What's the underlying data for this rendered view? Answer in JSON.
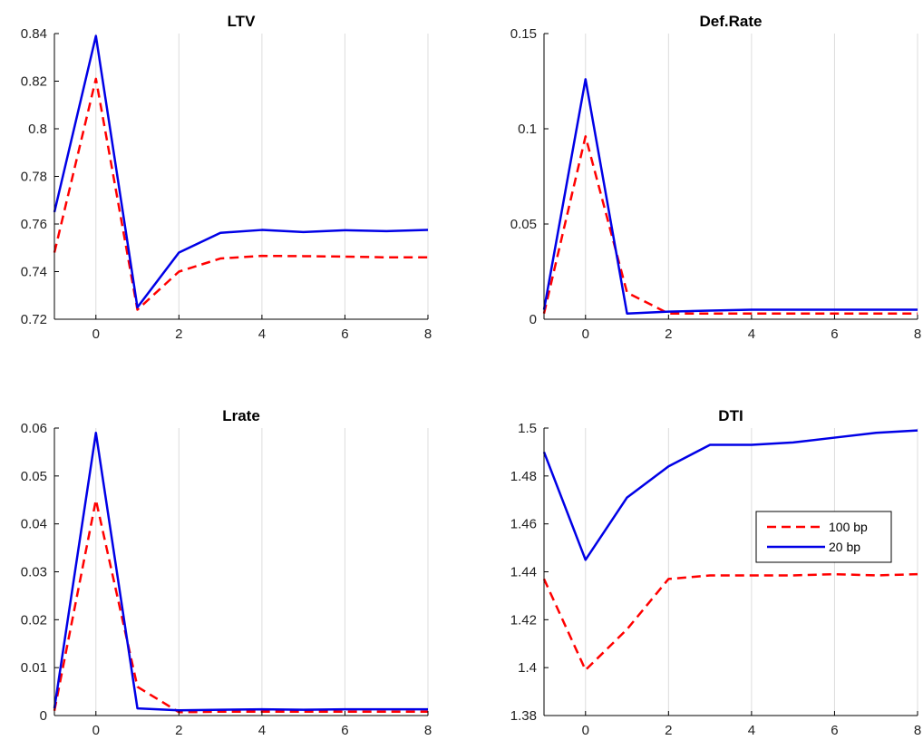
{
  "chart_data": [
    {
      "type": "line",
      "title": "LTV",
      "xlabel": "",
      "ylabel": "",
      "xlim": [
        -1,
        8
      ],
      "ylim": [
        0.72,
        0.84
      ],
      "xticks": [
        0,
        2,
        4,
        6,
        8
      ],
      "yticks": [
        0.72,
        0.74,
        0.76,
        0.78,
        0.8,
        0.82,
        0.84
      ],
      "ytick_labels": [
        "0.72",
        "0.74",
        "0.76",
        "0.78",
        "0.8",
        "0.82",
        "0.84"
      ],
      "grid": "x",
      "x": [
        -1,
        0,
        1,
        2,
        3,
        4,
        5,
        6,
        7,
        8
      ],
      "series": [
        {
          "name": "100 bp",
          "color": "#ff0000",
          "style": "dashed",
          "values": [
            0.748,
            0.821,
            0.724,
            0.74,
            0.7455,
            0.7466,
            0.7465,
            0.7463,
            0.746,
            0.746
          ]
        },
        {
          "name": "20 bp",
          "color": "#0000e6",
          "style": "solid",
          "values": [
            0.765,
            0.839,
            0.725,
            0.748,
            0.7563,
            0.7575,
            0.7566,
            0.7574,
            0.757,
            0.7575
          ]
        }
      ]
    },
    {
      "type": "line",
      "title": "Def.Rate",
      "xlabel": "",
      "ylabel": "",
      "xlim": [
        -1,
        8
      ],
      "ylim": [
        0,
        0.15
      ],
      "xticks": [
        0,
        2,
        4,
        6,
        8
      ],
      "yticks": [
        0,
        0.05,
        0.1,
        0.15
      ],
      "ytick_labels": [
        "0",
        "0.05",
        "0.1",
        "0.15"
      ],
      "grid": "x",
      "x": [
        -1,
        0,
        1,
        2,
        3,
        4,
        5,
        6,
        7,
        8
      ],
      "series": [
        {
          "name": "100 bp",
          "color": "#ff0000",
          "style": "dashed",
          "values": [
            0.003,
            0.096,
            0.014,
            0.003,
            0.003,
            0.003,
            0.003,
            0.003,
            0.003,
            0.003
          ]
        },
        {
          "name": "20 bp",
          "color": "#0000e6",
          "style": "solid",
          "values": [
            0.005,
            0.126,
            0.003,
            0.004,
            0.0045,
            0.005,
            0.005,
            0.005,
            0.005,
            0.005
          ]
        }
      ]
    },
    {
      "type": "line",
      "title": "Lrate",
      "xlabel": "",
      "ylabel": "",
      "xlim": [
        -1,
        8
      ],
      "ylim": [
        0,
        0.06
      ],
      "xticks": [
        0,
        2,
        4,
        6,
        8
      ],
      "yticks": [
        0,
        0.01,
        0.02,
        0.03,
        0.04,
        0.05,
        0.06
      ],
      "ytick_labels": [
        "0",
        "0.01",
        "0.02",
        "0.03",
        "0.04",
        "0.05",
        "0.06"
      ],
      "grid": "x",
      "x": [
        -1,
        0,
        1,
        2,
        3,
        4,
        5,
        6,
        7,
        8
      ],
      "series": [
        {
          "name": "100 bp",
          "color": "#ff0000",
          "style": "dashed",
          "values": [
            0.001,
            0.045,
            0.006,
            0.0007,
            0.0008,
            0.0008,
            0.0008,
            0.0008,
            0.0008,
            0.0008
          ]
        },
        {
          "name": "20 bp",
          "color": "#0000e6",
          "style": "solid",
          "values": [
            0.0015,
            0.059,
            0.0015,
            0.0011,
            0.0012,
            0.0013,
            0.0012,
            0.0013,
            0.0013,
            0.0013
          ]
        }
      ]
    },
    {
      "type": "line",
      "title": "DTI",
      "xlabel": "",
      "ylabel": "",
      "xlim": [
        -1,
        8
      ],
      "ylim": [
        1.38,
        1.5
      ],
      "xticks": [
        0,
        2,
        4,
        6,
        8
      ],
      "yticks": [
        1.38,
        1.4,
        1.42,
        1.44,
        1.46,
        1.48,
        1.5
      ],
      "ytick_labels": [
        "1.38",
        "1.4",
        "1.42",
        "1.44",
        "1.46",
        "1.48",
        "1.5"
      ],
      "grid": "x",
      "x": [
        -1,
        0,
        1,
        2,
        3,
        4,
        5,
        6,
        7,
        8
      ],
      "legend": {
        "placement": "center-right",
        "entries": [
          "100 bp",
          "20 bp"
        ]
      },
      "series": [
        {
          "name": "100 bp",
          "color": "#ff0000",
          "style": "dashed",
          "values": [
            1.437,
            1.399,
            1.416,
            1.437,
            1.4385,
            1.4385,
            1.4385,
            1.439,
            1.4385,
            1.439
          ]
        },
        {
          "name": "20 bp",
          "color": "#0000e6",
          "style": "solid",
          "values": [
            1.49,
            1.445,
            1.471,
            1.484,
            1.493,
            1.493,
            1.494,
            1.496,
            1.498,
            1.499
          ]
        }
      ]
    }
  ]
}
